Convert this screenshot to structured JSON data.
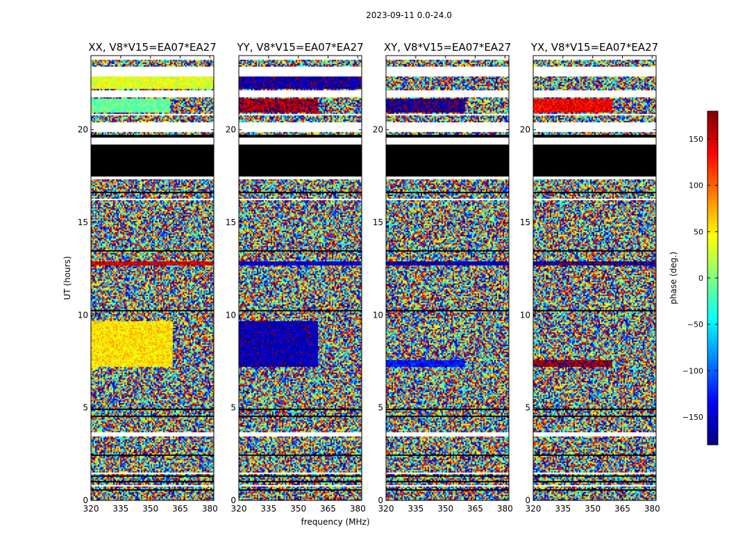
{
  "chart_data": {
    "type": "heatmap",
    "suptitle": "2023-09-11 0.0-24.0",
    "xlabel": "frequency (MHz)",
    "ylabel": "UT (hours)",
    "xlim": [
      320,
      382
    ],
    "ylim": [
      0,
      24
    ],
    "xticks": [
      320,
      335,
      350,
      365,
      380
    ],
    "yticks": [
      0,
      5,
      10,
      15,
      20
    ],
    "colorbar": {
      "label": "phase (deg.)",
      "range": [
        -180,
        180
      ],
      "ticks": [
        150,
        100,
        50,
        0,
        -50,
        -100,
        -150
      ],
      "tick_labels": [
        "150",
        "100",
        "50",
        "0",
        "−50",
        "−100",
        "−150"
      ],
      "colormap": "jet",
      "colors": [
        "#00007f",
        "#0000ff",
        "#007fff",
        "#00ffff",
        "#7fff7f",
        "#ffff00",
        "#ff7f00",
        "#ff0000",
        "#7f0000"
      ]
    },
    "no_data_color": "#ffffff",
    "flagged_color": "#000000",
    "panels": [
      {
        "title": "XX, V8*V15=EA07*EA27",
        "segments": [
          {
            "t0": 7.2,
            "t1": 9.7,
            "f0": 320,
            "f1": 361,
            "kind": "coherent",
            "phase": 55
          },
          {
            "t0": 12.7,
            "t1": 12.9,
            "f0": 320,
            "f1": 382,
            "kind": "coherent",
            "phase": 150
          },
          {
            "t0": 20.9,
            "t1": 21.7,
            "f0": 320,
            "f1": 360,
            "kind": "coherent",
            "phase": -10
          },
          {
            "t0": 22.2,
            "t1": 22.9,
            "f0": 320,
            "f1": 382,
            "kind": "coherent",
            "phase": 35
          }
        ]
      },
      {
        "title": "YY, V8*V15=EA07*EA27",
        "segments": [
          {
            "t0": 7.2,
            "t1": 9.7,
            "f0": 320,
            "f1": 360,
            "kind": "coherent",
            "phase": -160
          },
          {
            "t0": 12.7,
            "t1": 12.9,
            "f0": 320,
            "f1": 382,
            "kind": "coherent",
            "phase": -150
          },
          {
            "t0": 20.9,
            "t1": 21.7,
            "f0": 320,
            "f1": 360,
            "kind": "coherent",
            "phase": 165
          },
          {
            "t0": 22.2,
            "t1": 22.9,
            "f0": 320,
            "f1": 382,
            "kind": "coherent",
            "phase": -165
          }
        ]
      },
      {
        "title": "XY, V8*V15=EA07*EA27",
        "segments": [
          {
            "t0": 7.2,
            "t1": 7.6,
            "f0": 320,
            "f1": 360,
            "kind": "coherent",
            "phase": -130
          },
          {
            "t0": 12.7,
            "t1": 12.9,
            "f0": 320,
            "f1": 382,
            "kind": "coherent",
            "phase": -160
          },
          {
            "t0": 20.9,
            "t1": 21.7,
            "f0": 320,
            "f1": 360,
            "kind": "coherent",
            "phase": -170
          }
        ]
      },
      {
        "title": "YX, V8*V15=EA07*EA27",
        "segments": [
          {
            "t0": 7.2,
            "t1": 7.6,
            "f0": 320,
            "f1": 360,
            "kind": "coherent",
            "phase": 170
          },
          {
            "t0": 12.7,
            "t1": 12.9,
            "f0": 320,
            "f1": 382,
            "kind": "coherent",
            "phase": -170
          },
          {
            "t0": 20.9,
            "t1": 21.7,
            "f0": 320,
            "f1": 360,
            "kind": "coherent",
            "phase": 140
          }
        ]
      }
    ],
    "empty_intervals": [
      [
        0.75,
        0.82
      ],
      [
        1.45,
        1.5
      ],
      [
        3.45,
        3.65
      ],
      [
        16.2,
        16.3
      ],
      [
        17.3,
        17.5
      ],
      [
        19.2,
        19.6
      ],
      [
        19.9,
        20.4
      ],
      [
        20.8,
        20.85
      ],
      [
        21.75,
        22.1
      ],
      [
        22.85,
        23.4
      ],
      [
        23.8,
        24.0
      ]
    ],
    "flagged_intervals": [
      [
        0.5,
        0.58
      ],
      [
        1.0,
        1.05
      ],
      [
        1.3,
        1.35
      ],
      [
        2.4,
        2.45
      ],
      [
        2.9,
        2.95
      ],
      [
        4.5,
        4.55
      ],
      [
        4.9,
        4.95
      ],
      [
        5.3,
        5.35
      ],
      [
        6.5,
        6.55
      ],
      [
        9.8,
        9.85
      ],
      [
        10.2,
        10.25
      ],
      [
        12.95,
        13.0
      ],
      [
        13.45,
        13.5
      ],
      [
        16.6,
        16.65
      ],
      [
        17.5,
        19.2
      ],
      [
        19.6,
        19.7
      ],
      [
        23.35,
        23.4
      ]
    ]
  }
}
